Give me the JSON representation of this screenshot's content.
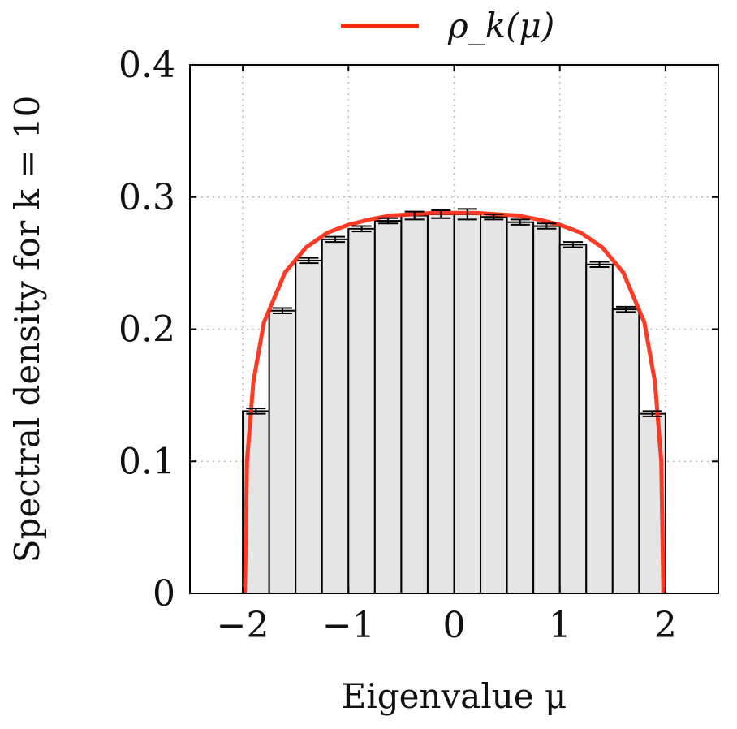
{
  "chart_data": {
    "type": "bar",
    "subtype": "histogram_with_density_curve",
    "xlabel": "Eigenvalue μ",
    "ylabel": "Spectral density for k = 10",
    "xlim": [
      -2.5,
      2.5
    ],
    "ylim": [
      0,
      0.4
    ],
    "xticks": [
      -2,
      -1,
      0,
      1,
      2
    ],
    "xtick_labels": [
      "−2",
      "−1",
      "0",
      "1",
      "2"
    ],
    "yticks": [
      0,
      0.1,
      0.2,
      0.3,
      0.4
    ],
    "ytick_labels": [
      "0",
      "0.1",
      "0.2",
      "0.3",
      "0.4"
    ],
    "grid": true,
    "legend": {
      "position": "top-center",
      "entries": [
        {
          "label": "ρ_k(μ)",
          "color": "#ff2a12"
        }
      ]
    },
    "histogram": {
      "bin_width": 0.25,
      "bin_starts": [
        -2.0,
        -1.75,
        -1.5,
        -1.25,
        -1.0,
        -0.75,
        -0.5,
        -0.25,
        0.0,
        0.25,
        0.5,
        0.75,
        1.0,
        1.25,
        1.5,
        1.75
      ],
      "values": [
        0.138,
        0.214,
        0.252,
        0.268,
        0.276,
        0.282,
        0.286,
        0.287,
        0.287,
        0.285,
        0.281,
        0.278,
        0.264,
        0.249,
        0.215,
        0.136
      ],
      "errors": [
        0.002,
        0.002,
        0.002,
        0.002,
        0.002,
        0.002,
        0.003,
        0.003,
        0.004,
        0.002,
        0.002,
        0.002,
        0.002,
        0.002,
        0.002,
        0.002
      ],
      "fill_color": "#e5e5e5",
      "edge_color": "#000000"
    },
    "curve": {
      "name": "ρ_k(μ)",
      "color": "#ff2a12",
      "x": [
        -1.98,
        -1.96,
        -1.9,
        -1.8,
        -1.6,
        -1.4,
        -1.2,
        -1.0,
        -0.8,
        -0.6,
        -0.4,
        -0.2,
        0.0,
        0.2,
        0.4,
        0.6,
        0.8,
        1.0,
        1.2,
        1.4,
        1.6,
        1.8,
        1.9,
        1.96,
        1.98
      ],
      "y": [
        0.0,
        0.1,
        0.16,
        0.205,
        0.243,
        0.262,
        0.273,
        0.279,
        0.283,
        0.286,
        0.287,
        0.288,
        0.288,
        0.288,
        0.287,
        0.286,
        0.283,
        0.279,
        0.273,
        0.262,
        0.243,
        0.205,
        0.16,
        0.1,
        0.0
      ]
    }
  }
}
